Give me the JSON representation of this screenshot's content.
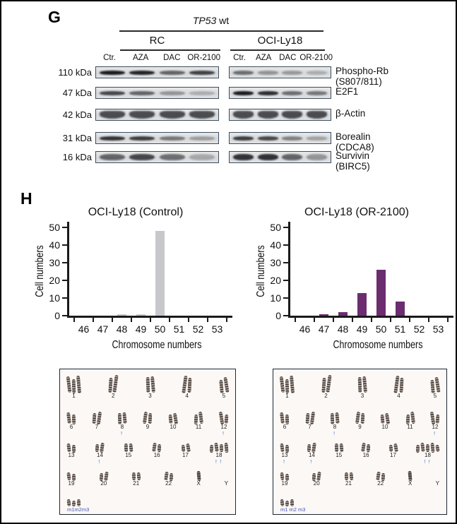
{
  "figure": {
    "panel_g_label": "G",
    "panel_h_label": "H"
  },
  "panel_g": {
    "gene": "TP53",
    "gene_suffix": " wt",
    "groups": [
      "RC",
      "OCI-Ly18"
    ],
    "lane_labels": [
      "Ctr.",
      "AZA",
      "DAC",
      "OR-2100"
    ],
    "rows": [
      {
        "kda": "110 kDa",
        "protein_lines": [
          "Phospho-Rb",
          "(S807/811)"
        ],
        "band_style": "thin",
        "rc_bands": [
          0.97,
          0.93,
          0.6,
          0.78
        ],
        "ly18_bands": [
          0.55,
          0.35,
          0.32,
          0.22
        ]
      },
      {
        "kda": "47 kDa",
        "protein_lines": [
          "E2F1"
        ],
        "band_style": "thin",
        "rc_bands": [
          0.75,
          0.6,
          0.35,
          0.22
        ],
        "ly18_bands": [
          0.97,
          0.88,
          0.55,
          0.5
        ]
      },
      {
        "kda": "42 kDa",
        "protein_lines": [
          "β-Actin"
        ],
        "band_style": "blob",
        "rc_bands": [
          0.72,
          0.72,
          0.72,
          0.72
        ],
        "ly18_bands": [
          0.72,
          0.72,
          0.72,
          0.72
        ]
      },
      {
        "kda": "31 kDa",
        "protein_lines": [
          "Borealin",
          "(CDCA8)"
        ],
        "band_style": "thin",
        "rc_bands": [
          0.85,
          0.8,
          0.5,
          0.3
        ],
        "ly18_bands": [
          0.8,
          0.75,
          0.45,
          0.28
        ]
      },
      {
        "kda": "16 kDa",
        "protein_lines": [
          "Survivin",
          "(BIRC5)"
        ],
        "band_style": "mid",
        "rc_bands": [
          0.6,
          0.75,
          0.55,
          0.25
        ],
        "ly18_bands": [
          0.85,
          0.85,
          0.6,
          0.35
        ]
      }
    ]
  },
  "chart_data": [
    {
      "type": "bar",
      "title": "OCI-Ly18 (Control)",
      "categories": [
        "46",
        "47",
        "48",
        "49",
        "50",
        "51",
        "52",
        "53"
      ],
      "values": [
        0,
        0,
        1,
        1,
        48,
        0,
        0,
        0
      ],
      "xlabel": "Chromosome numbers",
      "ylabel": "Cell numbers",
      "ylim": [
        0,
        50
      ],
      "yticks": [
        "0",
        "10",
        "20",
        "30",
        "40",
        "50"
      ],
      "grid": false,
      "legend": "none",
      "bar_color": "#c8c7cc"
    },
    {
      "type": "bar",
      "title": "OCI-Ly18 (OR-2100)",
      "categories": [
        "46",
        "47",
        "48",
        "49",
        "50",
        "51",
        "52",
        "53"
      ],
      "values": [
        0,
        1,
        2,
        13,
        26,
        8,
        0,
        0
      ],
      "xlabel": "Chromosome numbers",
      "ylabel": "Cell numbers",
      "ylim": [
        0,
        50
      ],
      "yticks": [
        "0",
        "10",
        "20",
        "30",
        "40",
        "50"
      ],
      "grid": false,
      "legend": "none",
      "bar_color": "#6b2d70"
    }
  ],
  "karyotypes": {
    "arrow_glyph": "↑",
    "arrow_color": "#2e5fbe",
    "marker_label_color": "#4553b8",
    "panels": [
      {
        "name": "control-karyotype",
        "rows": [
          [
            {
              "label": "1",
              "count": 3
            },
            {
              "label": "2",
              "count": 2
            },
            {
              "label": "3",
              "count": 2
            },
            {
              "label": "4",
              "count": 2
            },
            {
              "label": "5",
              "count": 2
            }
          ],
          [
            {
              "label": "6",
              "count": 2
            },
            {
              "label": "7",
              "count": 2
            },
            {
              "label": "8",
              "count": 2,
              "arrows": 1
            },
            {
              "label": "9",
              "count": 2
            },
            {
              "label": "10",
              "count": 2
            },
            {
              "label": "11",
              "count": 2
            },
            {
              "label": "12",
              "count": 2,
              "arrows": 1
            }
          ],
          [
            {
              "label": "13",
              "count": 2
            },
            {
              "label": "14",
              "count": 2,
              "arrows": 1
            },
            {
              "label": "15",
              "count": 2
            },
            {
              "label": "16",
              "count": 2
            },
            {
              "label": "17",
              "count": 2
            },
            {
              "label": "18",
              "count": 4,
              "arrows": 2
            }
          ],
          [
            {
              "label": "19",
              "count": 2
            },
            {
              "label": "20",
              "count": 2
            },
            {
              "label": "21",
              "count": 2
            },
            {
              "label": "22",
              "count": 2
            },
            {
              "label": "X",
              "count": 1,
              "sex": true
            },
            {
              "label": "Y",
              "count": 0,
              "sex": true
            }
          ]
        ],
        "marker_label": "m1m2m3",
        "marker_count": 3
      },
      {
        "name": "or2100-karyotype",
        "rows": [
          [
            {
              "label": "1",
              "count": 3
            },
            {
              "label": "2",
              "count": 2
            },
            {
              "label": "3",
              "count": 2
            },
            {
              "label": "4",
              "count": 2
            },
            {
              "label": "5",
              "count": 2
            }
          ],
          [
            {
              "label": "6",
              "count": 2
            },
            {
              "label": "7",
              "count": 2
            },
            {
              "label": "8",
              "count": 2,
              "arrows": 1
            },
            {
              "label": "9",
              "count": 2
            },
            {
              "label": "10",
              "count": 2
            },
            {
              "label": "11",
              "count": 2
            },
            {
              "label": "12",
              "count": 2,
              "arrows": 1
            }
          ],
          [
            {
              "label": "13",
              "count": 2,
              "arrows": 1
            },
            {
              "label": "14",
              "count": 2,
              "arrows": 1
            },
            {
              "label": "15",
              "count": 2
            },
            {
              "label": "16",
              "count": 2
            },
            {
              "label": "17",
              "count": 2
            },
            {
              "label": "18",
              "count": 5,
              "arrows": 2
            }
          ],
          [
            {
              "label": "19",
              "count": 2
            },
            {
              "label": "20",
              "count": 2
            },
            {
              "label": "21",
              "count": 2
            },
            {
              "label": "22",
              "count": 2
            },
            {
              "label": "X",
              "count": 1,
              "sex": true
            },
            {
              "label": "Y",
              "count": 0,
              "sex": true
            }
          ]
        ],
        "marker_label": "m1 m2 m3",
        "marker_count": 3
      }
    ]
  }
}
